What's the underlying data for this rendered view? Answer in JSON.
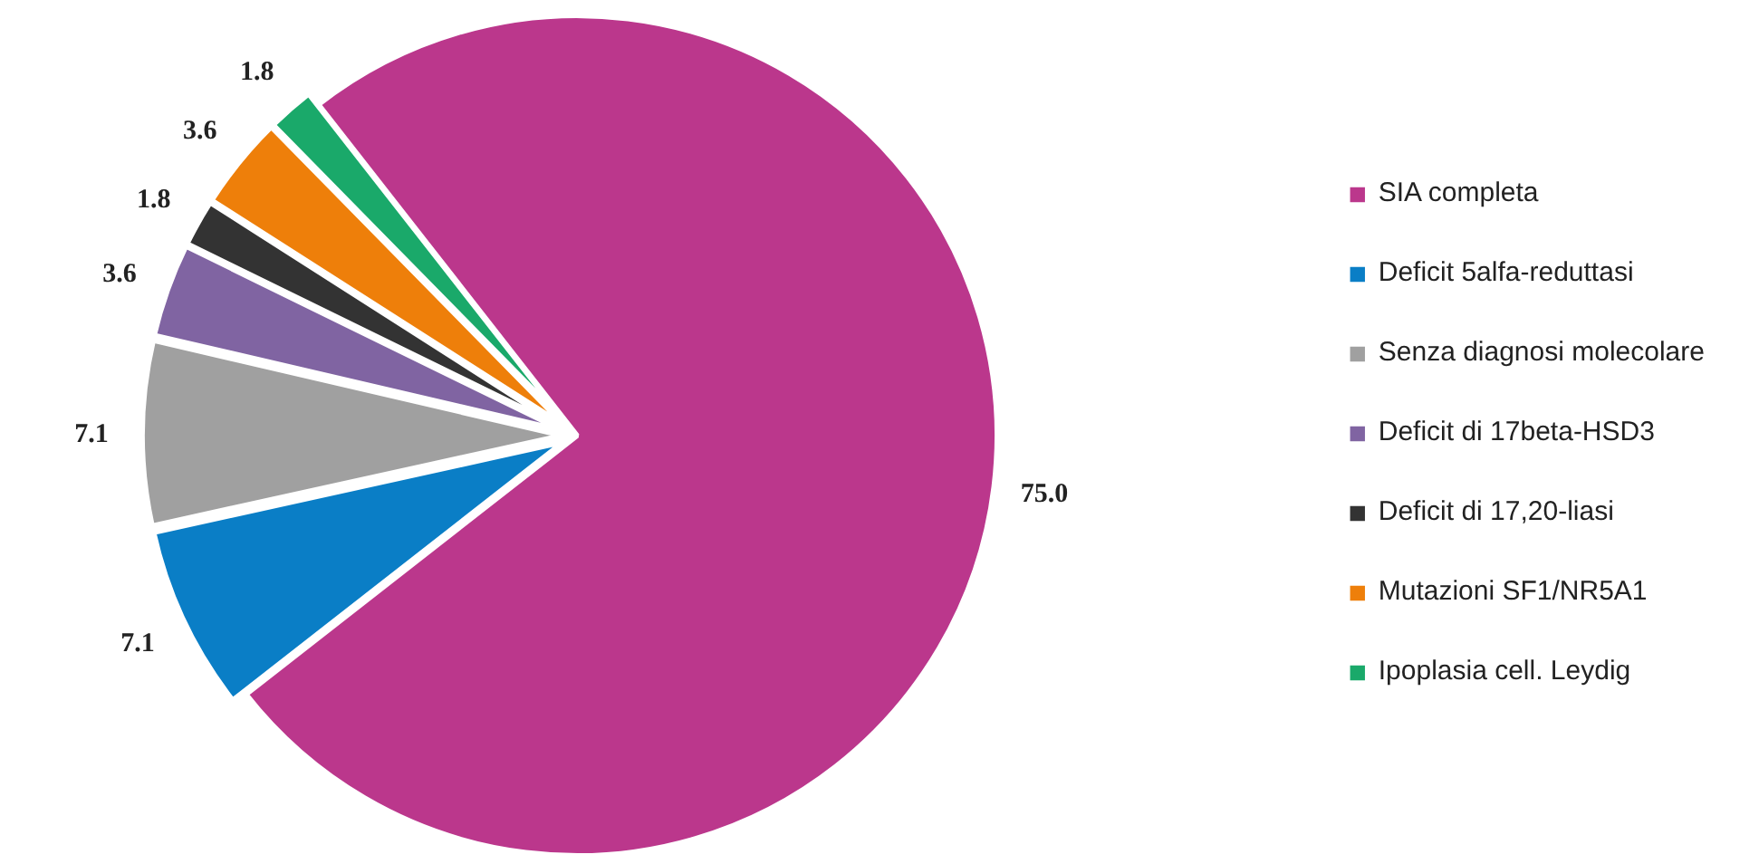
{
  "chart_data": {
    "type": "pie",
    "categories": [
      "SIA completa",
      "Deficit 5alfa-reduttasi",
      "Senza diagnosi molecolare",
      "Deficit di 17beta-HSD3",
      "Deficit di 17,20-liasi",
      "Mutazioni SF1/NR5A1",
      "Ipoplasia cell. Leydig"
    ],
    "values": [
      75.0,
      7.1,
      7.1,
      3.6,
      1.8,
      3.6,
      1.8
    ],
    "value_labels": [
      "75.0",
      "7.1",
      "7.1",
      "3.6",
      "1.8",
      "3.6",
      "1.8"
    ],
    "colors": [
      "#bb378c",
      "#0a7ec6",
      "#a0a0a0",
      "#8064a2",
      "#333333",
      "#ee7f0a",
      "#1aa96a"
    ],
    "legend": "right"
  }
}
